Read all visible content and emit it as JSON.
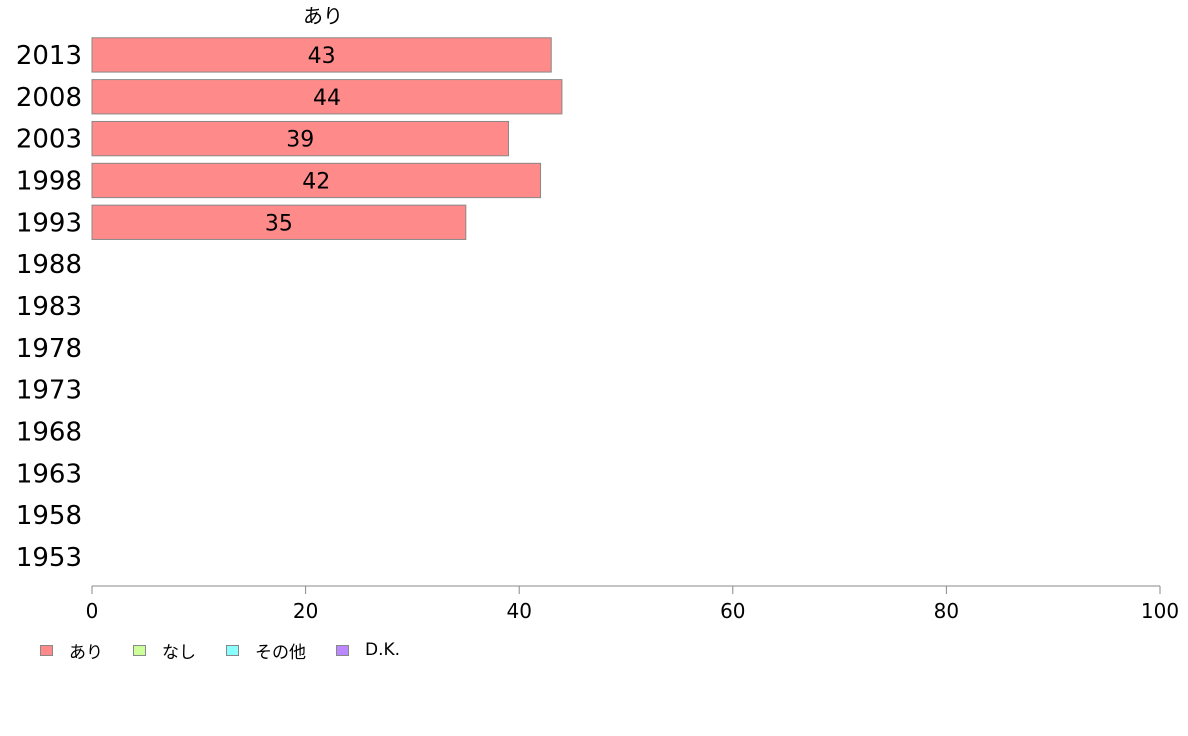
{
  "chart_data": {
    "type": "bar",
    "orientation": "horizontal",
    "stacked": true,
    "categories": [
      "2013",
      "2008",
      "2003",
      "1998",
      "1993",
      "1988",
      "1983",
      "1978",
      "1973",
      "1968",
      "1963",
      "1958",
      "1953"
    ],
    "series": [
      {
        "name": "あり",
        "color": "#ff8a8a",
        "values": [
          43,
          44,
          39,
          42,
          35,
          null,
          null,
          null,
          null,
          null,
          null,
          null,
          null
        ]
      },
      {
        "name": "なし",
        "color": "#ccff99",
        "values": [
          null,
          null,
          null,
          null,
          null,
          null,
          null,
          null,
          null,
          null,
          null,
          null,
          null
        ]
      },
      {
        "name": "その他",
        "color": "#8affff",
        "values": [
          null,
          null,
          null,
          null,
          null,
          null,
          null,
          null,
          null,
          null,
          null,
          null,
          null
        ]
      },
      {
        "name": "D.K.",
        "color": "#bb88ff",
        "values": [
          null,
          null,
          null,
          null,
          null,
          null,
          null,
          null,
          null,
          null,
          null,
          null,
          null
        ]
      }
    ],
    "header_label": "あり",
    "xlim": [
      0,
      100
    ],
    "xticks": [
      0,
      20,
      40,
      60,
      80,
      100
    ],
    "legend_position": "bottom-left",
    "grid": false
  }
}
